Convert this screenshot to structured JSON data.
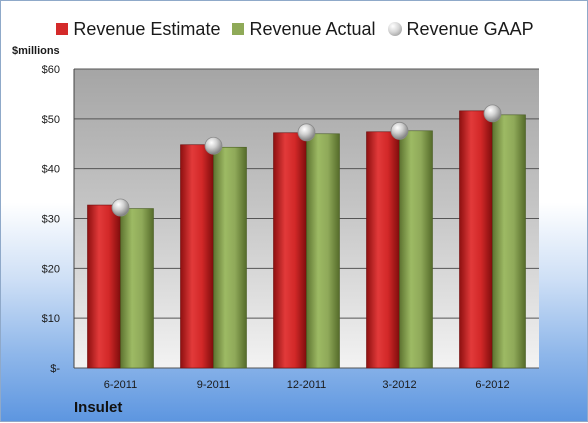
{
  "chart_data": {
    "type": "bar",
    "unit_label": "$millions",
    "company": "Insulet",
    "categories": [
      "6-2011",
      "9-2011",
      "12-2011",
      "3-2012",
      "6-2012"
    ],
    "series": [
      {
        "name": "Revenue Estimate",
        "type": "bar",
        "color": "#d42a2a",
        "values": [
          32.7,
          44.8,
          47.2,
          47.4,
          51.6
        ]
      },
      {
        "name": "Revenue Actual",
        "type": "bar",
        "color": "#8faa58",
        "values": [
          32.0,
          44.3,
          47.0,
          47.6,
          50.8
        ]
      },
      {
        "name": "Revenue GAAP",
        "type": "marker",
        "color": "#bdbdbd",
        "values": [
          32.2,
          44.6,
          47.3,
          47.6,
          51.1
        ]
      }
    ],
    "ylim": [
      0,
      60
    ],
    "yticks": [
      0,
      10,
      20,
      30,
      40,
      50,
      60
    ],
    "ytick_labels": [
      "$-",
      "$10",
      "$20",
      "$30",
      "$40",
      "$50",
      "$60"
    ],
    "grid": true,
    "legend_position": "top"
  }
}
